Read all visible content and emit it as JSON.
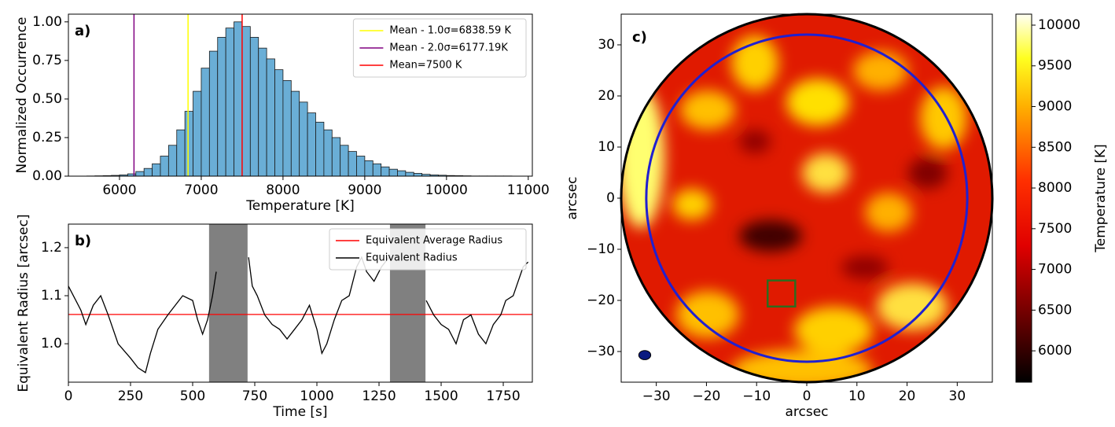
{
  "chart_data": [
    {
      "type": "histogram",
      "panel_label": "a)",
      "xlabel": "Temperature [K]",
      "ylabel": "Normalized Occurrence",
      "bins": [
        5400,
        5500,
        5600,
        5700,
        5800,
        5900,
        6000,
        6100,
        6200,
        6300,
        6400,
        6500,
        6600,
        6700,
        6800,
        6900,
        7000,
        7100,
        7200,
        7300,
        7400,
        7500,
        7600,
        7700,
        7800,
        7900,
        8000,
        8100,
        8200,
        8300,
        8400,
        8500,
        8600,
        8700,
        8800,
        8900,
        9000,
        9100,
        9200,
        9300,
        9400,
        9500,
        9600,
        9700,
        9800,
        9900,
        10000,
        10100,
        10200,
        10300,
        10400,
        10500,
        10600,
        10700,
        10800
      ],
      "values": [
        0,
        0,
        0.001,
        0.002,
        0.003,
        0.005,
        0.008,
        0.015,
        0.03,
        0.05,
        0.08,
        0.13,
        0.2,
        0.3,
        0.42,
        0.55,
        0.7,
        0.81,
        0.9,
        0.96,
        1.0,
        0.97,
        0.9,
        0.83,
        0.76,
        0.69,
        0.62,
        0.55,
        0.48,
        0.41,
        0.35,
        0.3,
        0.25,
        0.2,
        0.16,
        0.13,
        0.1,
        0.08,
        0.06,
        0.045,
        0.035,
        0.025,
        0.018,
        0.012,
        0.008,
        0.006,
        0.004,
        0.003,
        0.002,
        0.001,
        0.001,
        0.001,
        0.001,
        0.001
      ],
      "color": "#6aaed6",
      "vlines": [
        {
          "name": "Mean - 1.0σ=6838.59 K",
          "x": 6838.59,
          "color": "#ffff00"
        },
        {
          "name": "Mean - 2.0σ=6177.19K",
          "x": 6177.19,
          "color": "#800080"
        },
        {
          "name": "Mean=7500 K",
          "x": 7500,
          "color": "#ff0000"
        }
      ],
      "legend": "upper right",
      "xlim": [
        5375,
        11050
      ],
      "xticks": [
        6000,
        7000,
        8000,
        9000,
        10000,
        11000
      ],
      "ylim": [
        0,
        1.05
      ],
      "yticks": [
        {
          "value": 0,
          "label": "0.00"
        },
        {
          "value": 0.25,
          "label": "0.25"
        },
        {
          "value": 0.5,
          "label": "0.50"
        },
        {
          "value": 0.75,
          "label": "0.75"
        },
        {
          "value": 1,
          "label": "1.00"
        }
      ]
    },
    {
      "type": "line",
      "panel_label": "b)",
      "xlabel": "Time [s]",
      "ylabel": "Equivalent Radius [arcsec]",
      "x": [
        0,
        20,
        50,
        70,
        100,
        130,
        160,
        200,
        250,
        280,
        310,
        330,
        360,
        400,
        430,
        460,
        500,
        520,
        540,
        560,
        580,
        595,
        650,
        725,
        740,
        760,
        790,
        820,
        850,
        880,
        910,
        940,
        970,
        1000,
        1020,
        1040,
        1070,
        1100,
        1130,
        1160,
        1180,
        1200,
        1230,
        1260,
        1290,
        1360,
        1440,
        1470,
        1500,
        1530,
        1560,
        1590,
        1620,
        1650,
        1680,
        1710,
        1740,
        1760,
        1790,
        1810,
        1830,
        1850
      ],
      "series": [
        {
          "name": "Equivalent Average Radius",
          "color": "#ff0000",
          "hline": 1.061
        },
        {
          "name": "Equivalent Radius",
          "color": "#000000",
          "values": [
            1.12,
            1.1,
            1.07,
            1.04,
            1.08,
            1.1,
            1.06,
            1.0,
            0.97,
            0.95,
            0.94,
            0.98,
            1.03,
            1.06,
            1.08,
            1.1,
            1.09,
            1.05,
            1.02,
            1.05,
            1.1,
            1.15,
            null,
            1.18,
            1.12,
            1.1,
            1.06,
            1.04,
            1.03,
            1.01,
            1.03,
            1.05,
            1.08,
            1.03,
            0.98,
            1.0,
            1.05,
            1.09,
            1.1,
            1.16,
            1.18,
            1.15,
            1.13,
            1.16,
            1.18,
            null,
            1.09,
            1.06,
            1.04,
            1.03,
            1.0,
            1.05,
            1.06,
            1.02,
            1.0,
            1.04,
            1.06,
            1.09,
            1.1,
            1.13,
            1.16,
            1.17
          ]
        }
      ],
      "spans": [
        [
          566,
          721
        ],
        [
          1294,
          1437
        ]
      ],
      "span_color": "#808080",
      "legend": "upper right",
      "xlim": [
        0,
        1867
      ],
      "xticks": [
        0,
        250,
        500,
        750,
        1000,
        1250,
        1500,
        1750
      ],
      "ylim": [
        0.92,
        1.249
      ],
      "yticks": [
        {
          "value": 1.0,
          "label": "1.0"
        },
        1.1,
        1.2
      ]
    },
    {
      "type": "image",
      "panel_label": "c)",
      "xlabel": "arcsec",
      "ylabel": "arcsec",
      "xlim": [
        -37,
        37
      ],
      "xticks": [
        {
          "value": -30,
          "label": "−30"
        },
        {
          "value": -20,
          "label": "−20"
        },
        {
          "value": -10,
          "label": "−10"
        },
        0,
        10,
        20,
        30
      ],
      "ylim": [
        -36,
        36
      ],
      "yticks": [
        {
          "value": -30,
          "label": "−30"
        },
        {
          "value": -20,
          "label": "−20"
        },
        {
          "value": -10,
          "label": "−10"
        },
        0,
        10,
        20,
        30
      ],
      "circle": {
        "center": [
          0,
          0
        ],
        "radius": 32,
        "color": "#2020d0"
      },
      "box": {
        "x": [
          -7.8,
          -2.3
        ],
        "y": [
          -21.2,
          -16.1
        ],
        "color": "#2e6b1e"
      },
      "beam": {
        "center": [
          -32.3,
          -30.7
        ],
        "radius": [
          1.2,
          0.9
        ],
        "color": "#0a1a80"
      },
      "colorbar": {
        "label": "Temperature [K]",
        "lim": [
          5615,
          10135
        ],
        "ticks": [
          6000,
          6500,
          7000,
          7500,
          8000,
          8500,
          9000,
          9500,
          10000
        ]
      }
    }
  ]
}
